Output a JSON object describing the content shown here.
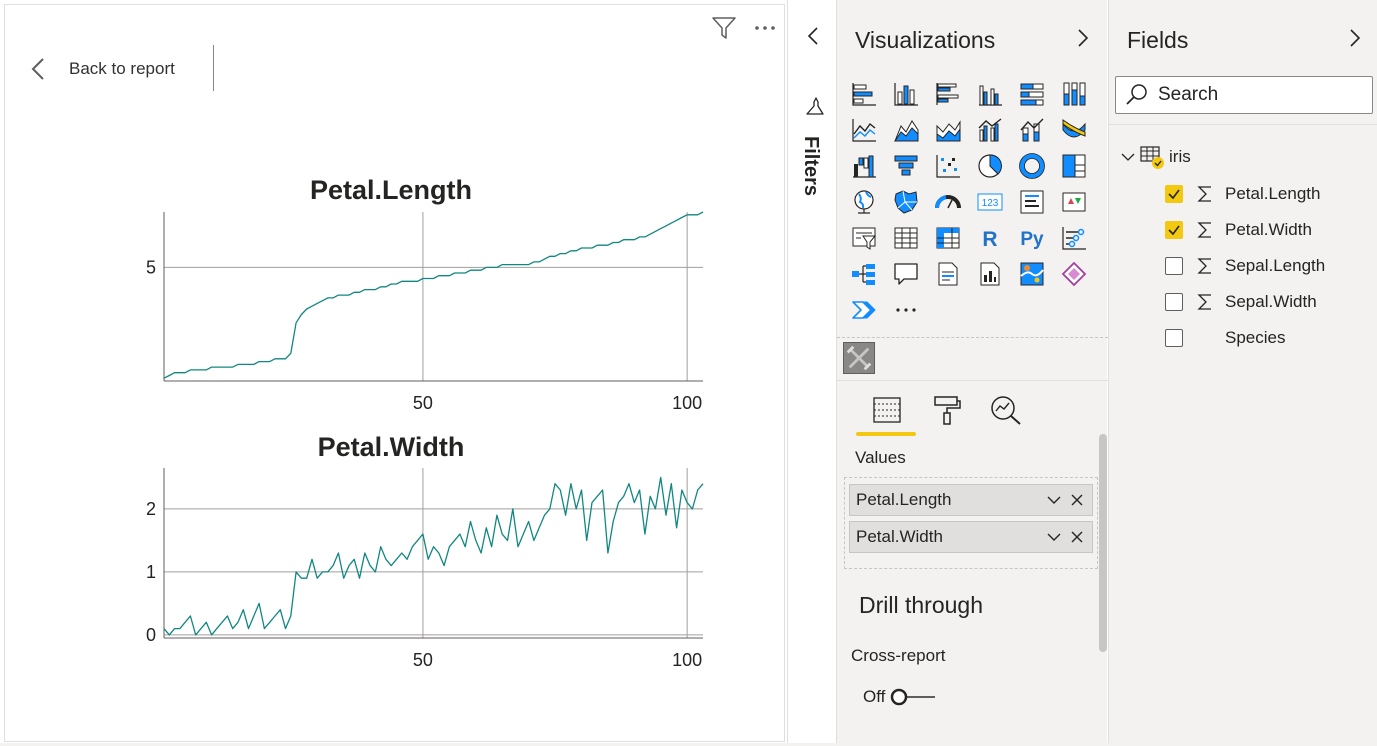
{
  "report": {
    "back_label": "Back to report",
    "icons": {
      "filter": "filter-icon",
      "more": "more-options-icon",
      "back": "chevron-left-icon"
    },
    "line_color": "#118781"
  },
  "charts": {
    "petal_length": {
      "title": "Petal.Length",
      "ytick_labels": [
        "5"
      ],
      "xtick_labels": [
        "50",
        "100"
      ]
    },
    "petal_width": {
      "title": "Petal.Width",
      "ytick_labels": [
        "2",
        "1",
        "0"
      ],
      "xtick_labels": [
        "50",
        "100"
      ]
    }
  },
  "chart_data": [
    {
      "type": "line",
      "title": "Petal.Length",
      "xlabel": "",
      "ylabel": "",
      "xlim": [
        1,
        103
      ],
      "ylim": [
        0.9,
        7.0
      ],
      "xticks": [
        50,
        100
      ],
      "yticks": [
        5
      ],
      "grid": true,
      "x": [
        1,
        2,
        3,
        4,
        5,
        6,
        7,
        8,
        9,
        10,
        11,
        12,
        13,
        14,
        15,
        16,
        17,
        18,
        19,
        20,
        21,
        22,
        23,
        24,
        25,
        26,
        27,
        28,
        29,
        30,
        31,
        32,
        33,
        34,
        35,
        36,
        37,
        38,
        39,
        40,
        41,
        42,
        43,
        44,
        45,
        46,
        47,
        48,
        49,
        50,
        51,
        52,
        53,
        54,
        55,
        56,
        57,
        58,
        59,
        60,
        61,
        62,
        63,
        64,
        65,
        66,
        67,
        68,
        69,
        70,
        71,
        72,
        73,
        74,
        75,
        76,
        77,
        78,
        79,
        80,
        81,
        82,
        83,
        84,
        85,
        86,
        87,
        88,
        89,
        90,
        91,
        92,
        93,
        94,
        95,
        96,
        97,
        98,
        99,
        100,
        101,
        102,
        103
      ],
      "series": [
        {
          "values": [
            1.0,
            1.1,
            1.2,
            1.2,
            1.2,
            1.3,
            1.3,
            1.3,
            1.3,
            1.4,
            1.4,
            1.4,
            1.4,
            1.4,
            1.5,
            1.5,
            1.5,
            1.5,
            1.6,
            1.6,
            1.6,
            1.7,
            1.7,
            1.7,
            1.9,
            3.0,
            3.3,
            3.5,
            3.6,
            3.7,
            3.8,
            3.9,
            3.9,
            4.0,
            4.0,
            4.0,
            4.1,
            4.1,
            4.2,
            4.2,
            4.2,
            4.3,
            4.3,
            4.4,
            4.4,
            4.5,
            4.5,
            4.5,
            4.5,
            4.6,
            4.6,
            4.6,
            4.7,
            4.7,
            4.7,
            4.8,
            4.8,
            4.8,
            4.9,
            4.9,
            4.9,
            5.0,
            5.0,
            5.0,
            5.1,
            5.1,
            5.1,
            5.1,
            5.1,
            5.1,
            5.2,
            5.2,
            5.3,
            5.4,
            5.4,
            5.5,
            5.5,
            5.6,
            5.6,
            5.7,
            5.7,
            5.7,
            5.8,
            5.8,
            5.8,
            5.9,
            5.9,
            6.0,
            6.0,
            6.0,
            6.1,
            6.1,
            6.2,
            6.3,
            6.4,
            6.5,
            6.6,
            6.7,
            6.8,
            6.9,
            6.9,
            6.9,
            7.0
          ]
        }
      ]
    },
    {
      "type": "line",
      "title": "Petal.Width",
      "xlabel": "",
      "ylabel": "",
      "xlim": [
        1,
        103
      ],
      "ylim": [
        -0.05,
        2.65
      ],
      "xticks": [
        50,
        100
      ],
      "yticks": [
        0,
        1,
        2
      ],
      "grid": true,
      "x": [
        1,
        2,
        3,
        4,
        5,
        6,
        7,
        8,
        9,
        10,
        11,
        12,
        13,
        14,
        15,
        16,
        17,
        18,
        19,
        20,
        21,
        22,
        23,
        24,
        25,
        26,
        27,
        28,
        29,
        30,
        31,
        32,
        33,
        34,
        35,
        36,
        37,
        38,
        39,
        40,
        41,
        42,
        43,
        44,
        45,
        46,
        47,
        48,
        49,
        50,
        51,
        52,
        53,
        54,
        55,
        56,
        57,
        58,
        59,
        60,
        61,
        62,
        63,
        64,
        65,
        66,
        67,
        68,
        69,
        70,
        71,
        72,
        73,
        74,
        75,
        76,
        77,
        78,
        79,
        80,
        81,
        82,
        83,
        84,
        85,
        86,
        87,
        88,
        89,
        90,
        91,
        92,
        93,
        94,
        95,
        96,
        97,
        98,
        99,
        100,
        101,
        102,
        103
      ],
      "series": [
        {
          "values": [
            0.1,
            0.0,
            0.1,
            0.1,
            0.2,
            0.3,
            0.0,
            0.1,
            0.2,
            0.0,
            0.1,
            0.2,
            0.3,
            0.1,
            0.2,
            0.4,
            0.1,
            0.3,
            0.5,
            0.1,
            0.2,
            0.3,
            0.4,
            0.1,
            0.3,
            1.0,
            0.9,
            0.9,
            1.2,
            0.9,
            1.0,
            1.0,
            1.1,
            1.3,
            0.9,
            1.1,
            1.2,
            0.9,
            1.3,
            1.1,
            1.0,
            1.4,
            1.2,
            1.1,
            1.2,
            1.3,
            1.2,
            1.4,
            1.5,
            1.6,
            1.2,
            1.4,
            1.3,
            1.1,
            1.4,
            1.5,
            1.6,
            1.4,
            1.8,
            1.5,
            1.3,
            1.7,
            1.4,
            1.9,
            1.6,
            1.5,
            2.0,
            1.4,
            1.6,
            1.8,
            1.5,
            1.7,
            1.9,
            2.0,
            2.4,
            2.3,
            1.9,
            2.4,
            2.0,
            2.3,
            1.5,
            2.1,
            2.2,
            2.3,
            1.3,
            1.8,
            2.1,
            2.2,
            2.4,
            2.1,
            2.3,
            1.6,
            2.2,
            2.0,
            2.5,
            1.9,
            2.4,
            1.7,
            2.3,
            2.1,
            2.0,
            2.3,
            2.4
          ]
        }
      ]
    }
  ],
  "filters_pane": {
    "label": "Filters",
    "icons": {
      "collapse": "chevron-left-icon",
      "filter": "filter-icon"
    }
  },
  "visualizations": {
    "title": "Visualizations",
    "expand_icon": "chevron-right-icon",
    "gallery": [
      "stacked-bar-chart-icon",
      "stacked-column-chart-icon",
      "clustered-bar-chart-icon",
      "clustered-column-chart-icon",
      "100-stacked-bar-chart-icon",
      "100-stacked-column-chart-icon",
      "line-chart-icon",
      "area-chart-icon",
      "stacked-area-chart-icon",
      "line-clustered-column-chart-icon",
      "line-stacked-column-chart-icon",
      "ribbon-chart-icon",
      "waterfall-chart-icon",
      "funnel-icon",
      "scatter-chart-icon",
      "pie-chart-icon",
      "donut-chart-icon",
      "treemap-icon",
      "map-icon",
      "filled-map-icon",
      "gauge-icon",
      "card-icon",
      "multi-row-card-icon",
      "kpi-icon",
      "slicer-icon",
      "table-icon",
      "matrix-icon",
      "r-visual-icon",
      "python-visual-icon",
      "key-influencers-icon",
      "decomposition-tree-icon",
      "qa-icon",
      "smart-narrative-icon",
      "paginated-report-icon",
      "arcgis-map-icon",
      "power-apps-icon",
      "power-automate-icon",
      "more-visuals-icon"
    ],
    "r_label": "R",
    "py_label": "Py",
    "card_label": "123",
    "custom_visual_icon": "custom-visual-icon",
    "tabs": {
      "fields": "fields-tab-icon",
      "format": "format-paint-roller-icon",
      "analytics": "analytics-magnifier-icon"
    },
    "accent": "#f2c811",
    "values_label": "Values",
    "wells": [
      {
        "label": "Petal.Length"
      },
      {
        "label": "Petal.Width"
      }
    ],
    "drill_through_title": "Drill through",
    "cross_report_label": "Cross-report",
    "cross_report_state": "Off"
  },
  "fields": {
    "title": "Fields",
    "expand_icon": "chevron-right-icon",
    "search_placeholder": "Search",
    "table_name": "iris",
    "items": [
      {
        "name": "Petal.Length",
        "checked": true,
        "aggregate": true
      },
      {
        "name": "Petal.Width",
        "checked": true,
        "aggregate": true
      },
      {
        "name": "Sepal.Length",
        "checked": false,
        "aggregate": true
      },
      {
        "name": "Sepal.Width",
        "checked": false,
        "aggregate": true
      },
      {
        "name": "Species",
        "checked": false,
        "aggregate": false
      }
    ]
  }
}
